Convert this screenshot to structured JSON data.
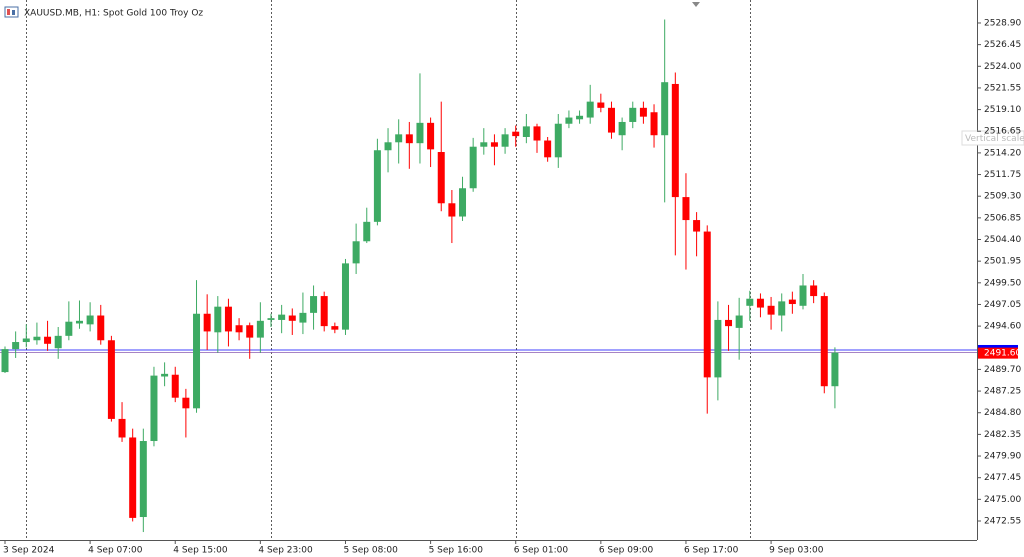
{
  "chart_data": {
    "type": "candlestick",
    "title": "XAUUSD.MB, H1:  Spot Gold 100 Troy Oz",
    "scale_hint": "Vertical scale",
    "up_color": "#3daa63",
    "down_color": "#ff0000",
    "categories": [
      "3 Sep 2024",
      null,
      null,
      null,
      null,
      null,
      null,
      null,
      "4 Sep 07:00",
      null,
      null,
      null,
      null,
      null,
      null,
      null,
      "4 Sep 15:00",
      null,
      null,
      null,
      null,
      null,
      null,
      null,
      "4 Sep 23:00",
      null,
      null,
      null,
      null,
      null,
      null,
      null,
      "5 Sep 08:00",
      null,
      null,
      null,
      null,
      null,
      null,
      null,
      "5 Sep 16:00",
      null,
      null,
      null,
      null,
      null,
      null,
      null,
      "6 Sep 01:00",
      null,
      null,
      null,
      null,
      null,
      null,
      null,
      "6 Sep 09:00",
      null,
      null,
      null,
      null,
      null,
      null,
      null,
      "6 Sep 17:00",
      null,
      null,
      null,
      null,
      null,
      null,
      null,
      "9 Sep 03:00",
      null,
      null,
      null,
      null,
      null,
      null
    ],
    "separators": [
      2,
      25,
      48,
      70
    ],
    "open": [
      2489.4,
      2492.0,
      2492.8,
      2493.0,
      2493.4,
      2492.1,
      2493.5,
      2494.9,
      2494.8,
      2495.8,
      2493.0,
      2484.1,
      2482.0,
      2473.0,
      2481.6,
      2488.9,
      2489.1,
      2486.5,
      2485.3,
      2496.0,
      2493.9,
      2496.8,
      2494.7,
      2494.7,
      2493.3,
      2495.3,
      2495.3,
      2495.8,
      2495.0,
      2496.1,
      2498.0,
      2494.6,
      2494.2,
      2501.7,
      2504.2,
      2506.4,
      2514.5,
      2515.4,
      2516.3,
      2515.3,
      2517.6,
      2514.3,
      2508.5,
      2507.0,
      2510.2,
      2514.9,
      2515.4,
      2514.9,
      2516.6,
      2516.0,
      2517.2,
      2515.6,
      2513.7,
      2517.5,
      2518.0,
      2518.2,
      2519.9,
      2519.3,
      2516.2,
      2517.7,
      2519.3,
      2518.8,
      2516.2,
      2522.0,
      2509.2,
      2506.6,
      2505.3,
      2488.8,
      2495.3,
      2494.4,
      2496.9,
      2497.7,
      2496.9,
      2495.8,
      2497.6,
      2496.9,
      2499.2,
      2498.0,
      2487.8
    ],
    "high": [
      2492.3,
      2494.0,
      2494.8,
      2495.0,
      2495.2,
      2494.5,
      2497.4,
      2497.5,
      2497.3,
      2497.0,
      2493.5,
      2486.0,
      2483.0,
      2483.0,
      2490.0,
      2490.5,
      2490.0,
      2487.5,
      2499.8,
      2498.2,
      2498.0,
      2497.7,
      2495.5,
      2495.0,
      2497.3,
      2496.0,
      2497.0,
      2496.6,
      2498.4,
      2499.2,
      2498.5,
      2495.0,
      2502.2,
      2506.2,
      2508.0,
      2515.8,
      2517.0,
      2518.0,
      2517.7,
      2523.2,
      2518.2,
      2520.0,
      2510.0,
      2511.5,
      2515.9,
      2517.0,
      2516.3,
      2517.0,
      2517.3,
      2518.6,
      2517.5,
      2516.0,
      2518.6,
      2519.0,
      2519.0,
      2521.9,
      2520.9,
      2520.0,
      2518.2,
      2520.0,
      2520.0,
      2519.7,
      2529.3,
      2523.3,
      2511.9,
      2507.5,
      2506.0,
      2497.4,
      2497.0,
      2497.8,
      2498.6,
      2498.3,
      2497.9,
      2498.3,
      2498.5,
      2500.5,
      2499.8,
      2498.4,
      2492.2
    ],
    "low": [
      2489.3,
      2491.0,
      2492.2,
      2492.5,
      2491.8,
      2490.9,
      2493.0,
      2494.3,
      2494.0,
      2492.5,
      2483.8,
      2481.5,
      2472.5,
      2471.3,
      2481.0,
      2487.8,
      2486.0,
      2482.0,
      2484.8,
      2491.9,
      2491.6,
      2492.3,
      2493.0,
      2490.9,
      2491.6,
      2494.5,
      2493.8,
      2493.6,
      2493.7,
      2494.2,
      2494.0,
      2493.8,
      2493.6,
      2500.5,
      2504.0,
      2506.0,
      2512.0,
      2513.0,
      2512.4,
      2513.0,
      2512.6,
      2507.6,
      2504.0,
      2506.5,
      2509.8,
      2514.0,
      2512.8,
      2514.1,
      2514.9,
      2515.3,
      2514.2,
      2513.2,
      2512.5,
      2517.0,
      2517.5,
      2517.5,
      2518.8,
      2515.8,
      2514.5,
      2517.0,
      2517.5,
      2514.8,
      2508.6,
      2502.6,
      2501.0,
      2502.5,
      2484.7,
      2486.2,
      2491.8,
      2490.8,
      2495.2,
      2495.6,
      2494.2,
      2494.0,
      2496.0,
      2496.5,
      2497.2,
      2487.0,
      2485.3
    ],
    "close": [
      2492.0,
      2492.8,
      2493.2,
      2493.4,
      2492.6,
      2493.5,
      2495.1,
      2495.2,
      2495.8,
      2493.0,
      2484.1,
      2482.0,
      2472.9,
      2481.6,
      2489.0,
      2489.2,
      2486.5,
      2485.3,
      2496.0,
      2494.0,
      2496.8,
      2494.0,
      2493.9,
      2493.3,
      2495.2,
      2495.5,
      2495.9,
      2495.2,
      2496.1,
      2498.0,
      2494.6,
      2494.2,
      2501.7,
      2504.2,
      2506.4,
      2514.5,
      2515.4,
      2516.3,
      2515.3,
      2517.6,
      2514.6,
      2508.5,
      2507.0,
      2510.2,
      2514.9,
      2515.4,
      2514.9,
      2516.3,
      2516.1,
      2517.2,
      2515.6,
      2513.7,
      2517.5,
      2518.2,
      2518.4,
      2520.0,
      2519.3,
      2516.5,
      2517.7,
      2519.3,
      2518.3,
      2516.2,
      2522.2,
      2509.2,
      2506.6,
      2505.3,
      2488.8,
      2495.3,
      2494.6,
      2495.8,
      2497.7,
      2496.7,
      2495.9,
      2497.4,
      2497.1,
      2499.2,
      2498.0,
      2487.8,
      2491.6
    ],
    "bid": {
      "value": 2491.6,
      "label": "2491.60",
      "color": "#ff0000"
    },
    "ask": {
      "value": 2491.9,
      "color": "#0000ff"
    },
    "ylim": [
      2470.4,
      2531.5
    ],
    "yticks": [
      {
        "value": 2472.55,
        "label": "2472.55"
      },
      {
        "value": 2475.0,
        "label": "2475.00"
      },
      {
        "value": 2477.45,
        "label": "2477.45"
      },
      {
        "value": 2479.9,
        "label": "2479.90"
      },
      {
        "value": 2482.35,
        "label": "2482.35"
      },
      {
        "value": 2484.8,
        "label": "2484.80"
      },
      {
        "value": 2487.25,
        "label": "2487.25"
      },
      {
        "value": 2489.7,
        "label": "2489.70"
      },
      {
        "value": 2494.6,
        "label": "2494.60"
      },
      {
        "value": 2497.05,
        "label": "2497.05"
      },
      {
        "value": 2499.5,
        "label": "2499.50"
      },
      {
        "value": 2501.95,
        "label": "2501.95"
      },
      {
        "value": 2504.4,
        "label": "2504.40"
      },
      {
        "value": 2506.85,
        "label": "2506.85"
      },
      {
        "value": 2509.3,
        "label": "2509.30"
      },
      {
        "value": 2511.75,
        "label": "2511.75"
      },
      {
        "value": 2514.2,
        "label": "2514.20"
      },
      {
        "value": 2516.65,
        "label": "2516.65"
      },
      {
        "value": 2519.1,
        "label": "2519.10"
      },
      {
        "value": 2521.55,
        "label": "2521.55"
      },
      {
        "value": 2524.0,
        "label": "2524.00"
      },
      {
        "value": 2526.45,
        "label": "2526.45"
      },
      {
        "value": 2528.9,
        "label": "2528.90"
      }
    ]
  }
}
